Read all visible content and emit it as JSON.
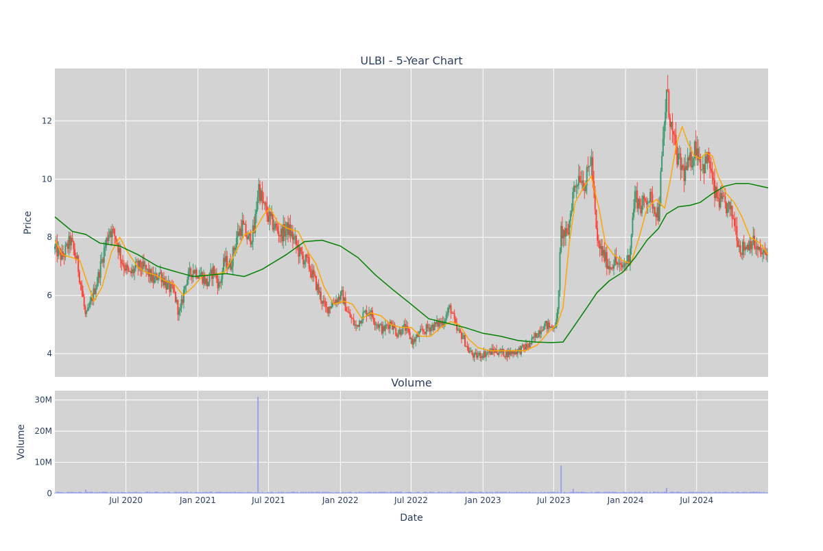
{
  "chart_data": [
    {
      "type": "candlestick",
      "title": "ULBI - 5-Year Chart",
      "xlabel": "",
      "ylabel": "Price",
      "x_range": [
        "2020-01-01",
        "2024-12-31"
      ],
      "ylim": [
        3.2,
        13.8
      ],
      "yticks": [
        4,
        6,
        8,
        10,
        12
      ],
      "xticks": [
        "2020-07-01",
        "2021-01-01",
        "2021-07-01",
        "2022-01-01",
        "2022-07-01",
        "2023-01-01",
        "2023-07-01",
        "2024-01-01",
        "2024-07-01"
      ],
      "grid": true,
      "colors": {
        "up": "#3d9970",
        "down": "#ff4136",
        "background": "#d3d3d3",
        "grid": "#ffffff"
      },
      "close_series": [
        [
          "2020-01-02",
          7.6
        ],
        [
          "2020-01-20",
          7.3
        ],
        [
          "2020-02-10",
          7.9
        ],
        [
          "2020-02-28",
          7.1
        ],
        [
          "2020-03-12",
          6.0
        ],
        [
          "2020-03-20",
          5.2
        ],
        [
          "2020-04-05",
          5.9
        ],
        [
          "2020-04-20",
          6.6
        ],
        [
          "2020-05-05",
          7.5
        ],
        [
          "2020-05-20",
          8.3
        ],
        [
          "2020-06-05",
          8.0
        ],
        [
          "2020-06-20",
          7.2
        ],
        [
          "2020-07-10",
          6.7
        ],
        [
          "2020-07-30",
          7.0
        ],
        [
          "2020-08-20",
          6.9
        ],
        [
          "2020-09-10",
          6.5
        ],
        [
          "2020-09-25",
          6.8
        ],
        [
          "2020-10-15",
          6.3
        ],
        [
          "2020-11-01",
          6.1
        ],
        [
          "2020-11-15",
          5.3
        ],
        [
          "2020-12-01",
          6.5
        ],
        [
          "2020-12-20",
          6.9
        ],
        [
          "2021-01-10",
          6.7
        ],
        [
          "2021-01-25",
          6.4
        ],
        [
          "2021-02-10",
          6.9
        ],
        [
          "2021-02-25",
          6.3
        ],
        [
          "2021-03-10",
          7.2
        ],
        [
          "2021-03-25",
          7.0
        ],
        [
          "2021-04-10",
          8.0
        ],
        [
          "2021-04-25",
          8.4
        ],
        [
          "2021-05-10",
          7.9
        ],
        [
          "2021-05-25",
          8.2
        ],
        [
          "2021-06-05",
          9.8
        ],
        [
          "2021-06-15",
          9.2
        ],
        [
          "2021-06-30",
          8.7
        ],
        [
          "2021-07-15",
          8.4
        ],
        [
          "2021-08-01",
          8.1
        ],
        [
          "2021-08-20",
          8.3
        ],
        [
          "2021-09-05",
          7.9
        ],
        [
          "2021-09-20",
          7.4
        ],
        [
          "2021-10-10",
          7.1
        ],
        [
          "2021-10-25",
          6.6
        ],
        [
          "2021-11-10",
          6.0
        ],
        [
          "2021-11-25",
          5.5
        ],
        [
          "2021-12-15",
          5.8
        ],
        [
          "2022-01-05",
          6.0
        ],
        [
          "2022-01-20",
          5.4
        ],
        [
          "2022-02-10",
          4.9
        ],
        [
          "2022-02-25",
          5.3
        ],
        [
          "2022-03-15",
          5.5
        ],
        [
          "2022-04-01",
          5.1
        ],
        [
          "2022-04-20",
          4.8
        ],
        [
          "2022-05-10",
          5.1
        ],
        [
          "2022-05-25",
          4.7
        ],
        [
          "2022-06-15",
          4.9
        ],
        [
          "2022-07-05",
          4.4
        ],
        [
          "2022-07-25",
          4.7
        ],
        [
          "2022-08-15",
          4.9
        ],
        [
          "2022-09-05",
          5.0
        ],
        [
          "2022-09-20",
          5.1
        ],
        [
          "2022-10-10",
          5.6
        ],
        [
          "2022-10-25",
          4.8
        ],
        [
          "2022-11-10",
          4.6
        ],
        [
          "2022-11-25",
          4.1
        ],
        [
          "2022-12-10",
          3.9
        ],
        [
          "2023-01-05",
          4.0
        ],
        [
          "2023-02-01",
          4.1
        ],
        [
          "2023-03-01",
          4.0
        ],
        [
          "2023-04-01",
          4.1
        ],
        [
          "2023-05-01",
          4.3
        ],
        [
          "2023-05-20",
          4.7
        ],
        [
          "2023-06-05",
          5.0
        ],
        [
          "2023-06-25",
          4.9
        ],
        [
          "2023-07-10",
          5.1
        ],
        [
          "2023-07-20",
          8.2
        ],
        [
          "2023-08-05",
          8.0
        ],
        [
          "2023-08-20",
          9.6
        ],
        [
          "2023-09-05",
          10.2
        ],
        [
          "2023-09-20",
          9.8
        ],
        [
          "2023-10-05",
          10.8
        ],
        [
          "2023-10-20",
          7.8
        ],
        [
          "2023-11-05",
          7.4
        ],
        [
          "2023-11-20",
          7.0
        ],
        [
          "2023-12-05",
          7.2
        ],
        [
          "2023-12-20",
          6.9
        ],
        [
          "2024-01-10",
          7.3
        ],
        [
          "2024-01-25",
          9.5
        ],
        [
          "2024-02-10",
          9.0
        ],
        [
          "2024-02-25",
          9.4
        ],
        [
          "2024-03-10",
          9.2
        ],
        [
          "2024-03-25",
          8.8
        ],
        [
          "2024-04-05",
          11.0
        ],
        [
          "2024-04-15",
          13.0
        ],
        [
          "2024-04-30",
          11.5
        ],
        [
          "2024-05-15",
          10.6
        ],
        [
          "2024-05-30",
          10.2
        ],
        [
          "2024-06-15",
          10.6
        ],
        [
          "2024-06-30",
          11.2
        ],
        [
          "2024-07-15",
          10.4
        ],
        [
          "2024-08-01",
          10.7
        ],
        [
          "2024-08-15",
          9.5
        ],
        [
          "2024-09-01",
          9.2
        ],
        [
          "2024-09-20",
          9.0
        ],
        [
          "2024-10-05",
          8.6
        ],
        [
          "2024-10-20",
          7.6
        ],
        [
          "2024-11-05",
          7.7
        ],
        [
          "2024-11-20",
          7.9
        ],
        [
          "2024-12-05",
          7.5
        ],
        [
          "2024-12-20",
          7.4
        ]
      ],
      "overlays": [
        {
          "color": "#ffa500",
          "points": [
            [
              "2020-01-01",
              7.9
            ],
            [
              "2020-01-20",
              7.4
            ],
            [
              "2020-02-15",
              7.3
            ],
            [
              "2020-03-05",
              7.2
            ],
            [
              "2020-03-25",
              6.4
            ],
            [
              "2020-04-10",
              5.8
            ],
            [
              "2020-05-01",
              6.3
            ],
            [
              "2020-05-25",
              7.5
            ],
            [
              "2020-06-15",
              8.0
            ],
            [
              "2020-07-05",
              7.5
            ],
            [
              "2020-07-30",
              7.0
            ],
            [
              "2020-08-20",
              6.8
            ],
            [
              "2020-09-15",
              6.7
            ],
            [
              "2020-10-10",
              6.5
            ],
            [
              "2020-11-01",
              6.4
            ],
            [
              "2020-11-25",
              6.0
            ],
            [
              "2020-12-20",
              6.3
            ],
            [
              "2021-01-15",
              6.7
            ],
            [
              "2021-02-10",
              6.7
            ],
            [
              "2021-03-10",
              6.8
            ],
            [
              "2021-04-05",
              7.4
            ],
            [
              "2021-05-01",
              8.1
            ],
            [
              "2021-05-25",
              8.2
            ],
            [
              "2021-06-20",
              8.8
            ],
            [
              "2021-07-05",
              9.0
            ],
            [
              "2021-07-25",
              8.5
            ],
            [
              "2021-08-20",
              8.3
            ],
            [
              "2021-09-15",
              8.2
            ],
            [
              "2021-10-10",
              7.5
            ],
            [
              "2021-10-30",
              7.1
            ],
            [
              "2021-11-20",
              6.3
            ],
            [
              "2021-12-15",
              5.7
            ],
            [
              "2022-01-10",
              5.8
            ],
            [
              "2022-02-01",
              5.7
            ],
            [
              "2022-02-25",
              5.2
            ],
            [
              "2022-03-20",
              5.4
            ],
            [
              "2022-04-15",
              5.3
            ],
            [
              "2022-05-10",
              5.0
            ],
            [
              "2022-06-05",
              4.9
            ],
            [
              "2022-07-01",
              4.9
            ],
            [
              "2022-07-25",
              4.6
            ],
            [
              "2022-08-20",
              4.6
            ],
            [
              "2022-09-15",
              4.9
            ],
            [
              "2022-10-10",
              5.1
            ],
            [
              "2022-11-01",
              5.0
            ],
            [
              "2022-11-25",
              4.5
            ],
            [
              "2022-12-20",
              4.2
            ],
            [
              "2023-01-20",
              4.1
            ],
            [
              "2023-02-20",
              4.1
            ],
            [
              "2023-03-20",
              4.1
            ],
            [
              "2023-04-20",
              4.1
            ],
            [
              "2023-05-20",
              4.3
            ],
            [
              "2023-06-15",
              4.7
            ],
            [
              "2023-07-10",
              5.0
            ],
            [
              "2023-07-25",
              5.6
            ],
            [
              "2023-08-10",
              7.8
            ],
            [
              "2023-08-25",
              9.2
            ],
            [
              "2023-09-15",
              9.7
            ],
            [
              "2023-10-05",
              10.1
            ],
            [
              "2023-10-25",
              9.0
            ],
            [
              "2023-11-10",
              7.8
            ],
            [
              "2023-12-01",
              7.4
            ],
            [
              "2023-12-25",
              7.2
            ],
            [
              "2024-01-15",
              7.1
            ],
            [
              "2024-02-05",
              8.0
            ],
            [
              "2024-02-25",
              9.0
            ],
            [
              "2024-03-20",
              9.3
            ],
            [
              "2024-04-10",
              9.0
            ],
            [
              "2024-04-25",
              10.0
            ],
            [
              "2024-05-10",
              11.2
            ],
            [
              "2024-05-25",
              11.8
            ],
            [
              "2024-06-10",
              11.2
            ],
            [
              "2024-06-25",
              10.8
            ],
            [
              "2024-07-10",
              10.7
            ],
            [
              "2024-07-25",
              10.9
            ],
            [
              "2024-08-10",
              10.8
            ],
            [
              "2024-08-25",
              10.1
            ],
            [
              "2024-09-15",
              9.5
            ],
            [
              "2024-10-05",
              9.2
            ],
            [
              "2024-10-25",
              8.7
            ],
            [
              "2024-11-15",
              8.0
            ],
            [
              "2024-12-10",
              7.8
            ],
            [
              "2024-12-31",
              7.4
            ]
          ]
        },
        {
          "color": "#008000",
          "points": [
            [
              "2020-01-01",
              8.7
            ],
            [
              "2020-02-15",
              8.2
            ],
            [
              "2020-03-20",
              8.1
            ],
            [
              "2020-04-25",
              7.8
            ],
            [
              "2020-06-15",
              7.7
            ],
            [
              "2020-08-01",
              7.4
            ],
            [
              "2020-09-20",
              7.0
            ],
            [
              "2020-11-10",
              6.8
            ],
            [
              "2020-12-20",
              6.65
            ],
            [
              "2021-02-01",
              6.7
            ],
            [
              "2021-03-15",
              6.75
            ],
            [
              "2021-04-30",
              6.65
            ],
            [
              "2021-06-15",
              6.9
            ],
            [
              "2021-08-15",
              7.4
            ],
            [
              "2021-10-01",
              7.85
            ],
            [
              "2021-11-15",
              7.9
            ],
            [
              "2022-01-01",
              7.7
            ],
            [
              "2022-02-15",
              7.3
            ],
            [
              "2022-04-01",
              6.7
            ],
            [
              "2022-05-15",
              6.2
            ],
            [
              "2022-07-01",
              5.7
            ],
            [
              "2022-08-15",
              5.2
            ],
            [
              "2022-10-01",
              5.05
            ],
            [
              "2022-11-15",
              4.9
            ],
            [
              "2023-01-01",
              4.7
            ],
            [
              "2023-02-15",
              4.6
            ],
            [
              "2023-04-01",
              4.45
            ],
            [
              "2023-05-15",
              4.4
            ],
            [
              "2023-06-25",
              4.38
            ],
            [
              "2023-07-25",
              4.4
            ],
            [
              "2023-08-20",
              4.9
            ],
            [
              "2023-09-25",
              5.6
            ],
            [
              "2023-10-20",
              6.1
            ],
            [
              "2023-11-20",
              6.5
            ],
            [
              "2023-12-25",
              6.8
            ],
            [
              "2024-01-25",
              7.3
            ],
            [
              "2024-02-25",
              7.9
            ],
            [
              "2024-03-25",
              8.3
            ],
            [
              "2024-04-15",
              8.8
            ],
            [
              "2024-05-15",
              9.05
            ],
            [
              "2024-06-15",
              9.1
            ],
            [
              "2024-07-10",
              9.2
            ],
            [
              "2024-08-10",
              9.5
            ],
            [
              "2024-09-10",
              9.75
            ],
            [
              "2024-10-10",
              9.85
            ],
            [
              "2024-11-10",
              9.85
            ],
            [
              "2024-12-31",
              9.7
            ]
          ]
        }
      ]
    },
    {
      "type": "bar",
      "title": "Volume",
      "xlabel": "Date",
      "ylabel": "Volume",
      "ylim": [
        0,
        33000000
      ],
      "yticks": [
        0,
        10000000,
        20000000,
        30000000
      ],
      "ytick_labels": [
        "0",
        "10M",
        "20M",
        "30M"
      ],
      "xticks": [
        "2020-07-01",
        "2021-01-01",
        "2021-07-01",
        "2022-01-01",
        "2022-07-01",
        "2023-01-01",
        "2023-07-01",
        "2024-01-01",
        "2024-07-01"
      ],
      "xtick_labels": [
        "Jul 2020",
        "Jan 2021",
        "Jul 2021",
        "Jan 2022",
        "Jul 2022",
        "Jan 2023",
        "Jul 2023",
        "Jan 2024",
        "Jul 2024"
      ],
      "grid": true,
      "bar_color": "#9aa2e8",
      "baseline_volume": 400000,
      "spikes": [
        [
          "2021-06-04",
          31000000
        ],
        [
          "2023-07-20",
          9000000
        ],
        [
          "2020-03-20",
          1200000
        ],
        [
          "2023-08-20",
          1500000
        ],
        [
          "2024-04-15",
          1800000
        ]
      ]
    }
  ]
}
